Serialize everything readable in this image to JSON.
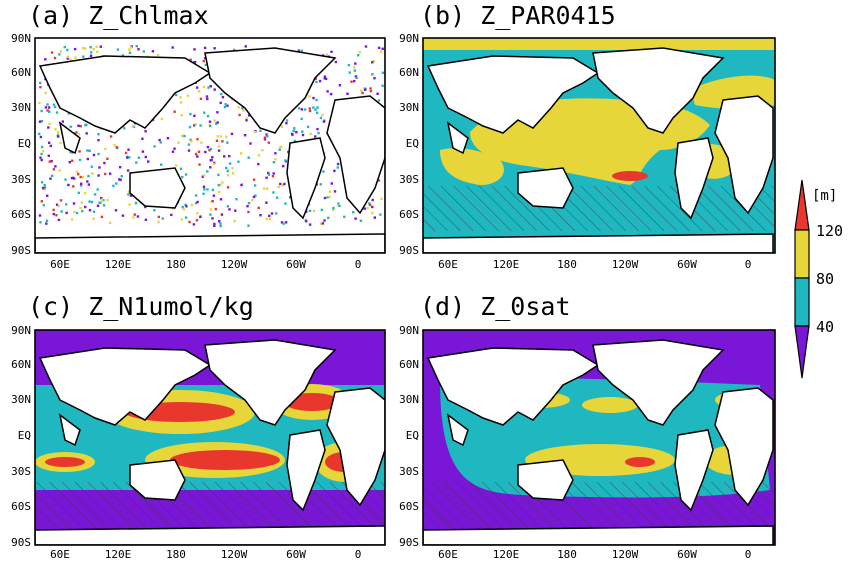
{
  "panels": [
    {
      "id": "a",
      "title": "(a) Z_Chlmax"
    },
    {
      "id": "b",
      "title": "(b) Z_PAR0415"
    },
    {
      "id": "c",
      "title": "(c) Z_N1umol/kg"
    },
    {
      "id": "d",
      "title": "(d) Z_0sat"
    }
  ],
  "axes": {
    "lat_labels": [
      "90N",
      "60N",
      "30N",
      "EQ",
      "30S",
      "60S",
      "90S"
    ],
    "lon_labels": [
      "60E",
      "120E",
      "180",
      "120W",
      "60W",
      "0"
    ]
  },
  "colorbar": {
    "unit": "[m]",
    "levels": [
      "120",
      "80",
      "40"
    ],
    "colors": [
      "#e8372c",
      "#e6d63a",
      "#1fb8c0",
      "#7a16d6"
    ]
  },
  "colors": {
    "land": "#ffffff",
    "coast": "#000000",
    "hatch": "#3a3a3a"
  }
}
